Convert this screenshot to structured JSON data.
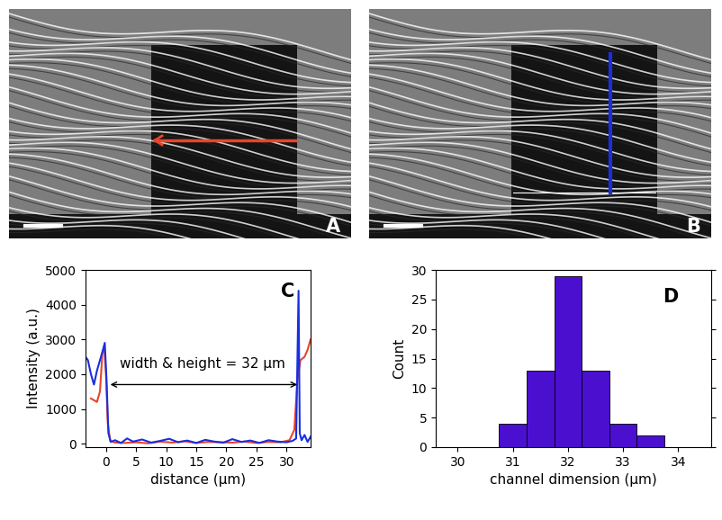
{
  "chart_data": [
    {
      "type": "image",
      "label": "A",
      "orientation": "horizontal",
      "color": "#e8462a"
    },
    {
      "type": "image",
      "label": "B",
      "orientation": "vertical",
      "color": "#1a2ee0"
    },
    {
      "type": "line",
      "label": "C",
      "xlabel": "distance (µm)",
      "ylabel": "Intensity (a.u.)",
      "xlim": [
        -3.4,
        34
      ],
      "ylim": [
        -100,
        5000
      ],
      "xticks": [
        0,
        5,
        10,
        15,
        20,
        25,
        30
      ],
      "yticks": [
        0,
        1000,
        2000,
        3000,
        4000,
        5000
      ],
      "series": [
        {
          "color": "#e8462a",
          "x": [
            -2.5,
            -2,
            -1.5,
            -1,
            -0.6,
            -0.3,
            0,
            0.3,
            0.7,
            1.5,
            3,
            5,
            7,
            9,
            11,
            13,
            15,
            17,
            19,
            21,
            23,
            25,
            27,
            29,
            30.5,
            31.3,
            31.8,
            32.3,
            33,
            33.5,
            34
          ],
          "values": [
            1300,
            1250,
            1200,
            1500,
            2600,
            2800,
            2000,
            600,
            80,
            30,
            20,
            40,
            10,
            60,
            30,
            70,
            20,
            50,
            40,
            30,
            60,
            20,
            50,
            40,
            100,
            400,
            1800,
            2400,
            2500,
            2700,
            3000
          ]
        },
        {
          "color": "#1a2ee0",
          "x": [
            -3.4,
            -3,
            -2.5,
            -2,
            -1.5,
            -1,
            -0.5,
            -0.2,
            0.1,
            0.4,
            0.8,
            1.5,
            2.5,
            3.5,
            4.5,
            6,
            7.5,
            9,
            10.5,
            12,
            13.5,
            15,
            16.5,
            18,
            19.5,
            21,
            22.5,
            24,
            25.5,
            27,
            28.5,
            30,
            31,
            31.6,
            32,
            32.2,
            32.5,
            33,
            33.5,
            34
          ],
          "values": [
            2500,
            2400,
            2000,
            1700,
            2100,
            2400,
            2700,
            2900,
            1800,
            300,
            50,
            100,
            20,
            150,
            60,
            120,
            30,
            80,
            140,
            40,
            90,
            20,
            110,
            60,
            30,
            130,
            50,
            90,
            20,
            100,
            60,
            40,
            80,
            150,
            4400,
            300,
            100,
            250,
            50,
            200
          ]
        }
      ],
      "annotations": [
        {
          "text": "width & height = 32 µm",
          "x": 16,
          "y": 2100,
          "from": 0.3,
          "to": 32.2,
          "arrow_y": 1700
        }
      ]
    },
    {
      "type": "histogram",
      "label": "D",
      "xlabel": "channel dimension (µm)",
      "ylabel": "Count",
      "bins": [
        30.75,
        31.25,
        31.75,
        32.25,
        32.75,
        33.25,
        33.75
      ],
      "counts": [
        4,
        13,
        29,
        13,
        4,
        2
      ],
      "color": "#4b0fd0",
      "xlim": [
        29.6,
        34.6
      ],
      "ylim": [
        0,
        30
      ],
      "xticks": [
        30,
        31,
        32,
        33,
        34
      ],
      "yticks": [
        0,
        5,
        10,
        15,
        20,
        25,
        30
      ]
    }
  ]
}
